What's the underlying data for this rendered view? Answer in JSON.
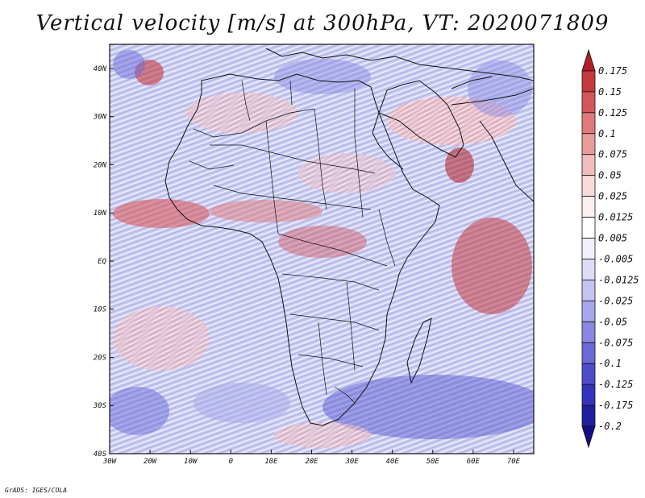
{
  "title": "Vertical velocity [m/s] at 300hPa, VT: 2020071809",
  "credit": "GrADS: IGES/COLA",
  "map": {
    "lon_ticks": [
      "30W",
      "20W",
      "10W",
      "0",
      "10E",
      "20E",
      "30E",
      "40E",
      "50E",
      "60E",
      "70E"
    ],
    "lat_ticks": [
      "40S",
      "30S",
      "20S",
      "10S",
      "EQ",
      "10N",
      "20N",
      "30N",
      "40N"
    ]
  },
  "colorbar": {
    "labels": [
      "0.175",
      "0.15",
      "0.125",
      "0.1",
      "0.075",
      "0.05",
      "0.025",
      "0.0125",
      "0.005",
      "-0.005",
      "-0.0125",
      "-0.025",
      "-0.05",
      "-0.075",
      "-0.1",
      "-0.125",
      "-0.175",
      "-0.2"
    ],
    "colors": [
      "#b01d25",
      "#c43a3e",
      "#d3575a",
      "#df7a7b",
      "#e99b9c",
      "#f2bdbd",
      "#f8dada",
      "#fcefef",
      "#ffffff",
      "#f0f0fc",
      "#dcdcf7",
      "#c4c4f1",
      "#a7a7ea",
      "#8888e2",
      "#6a6ad8",
      "#4d4dcc",
      "#3333bb",
      "#1f1fa0",
      "#140f85"
    ]
  }
}
